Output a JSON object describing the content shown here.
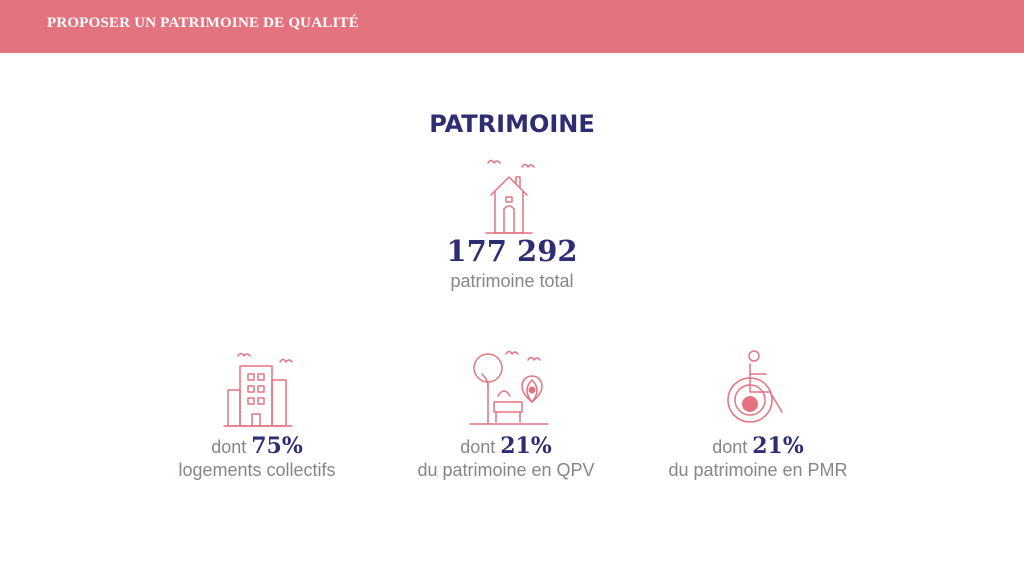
{
  "header": {
    "title": "PROPOSER UN PATRIMOINE DE QUALITÉ"
  },
  "main": {
    "title": "PATRIMOINE",
    "total": {
      "value": "177 292",
      "label": "patrimoine total",
      "icon": "house-icon"
    },
    "stats": [
      {
        "prefix": "dont ",
        "value": "75%",
        "label": "logements collectifs",
        "icon": "apartment-building-icon"
      },
      {
        "prefix": "dont ",
        "value": "21%",
        "label": "du patrimoine en QPV",
        "icon": "park-location-icon"
      },
      {
        "prefix": "dont ",
        "value": "21%",
        "label": "du patrimoine en PMR",
        "icon": "wheelchair-icon"
      }
    ]
  },
  "colors": {
    "accent": "#e47380",
    "navy": "#2e2d73",
    "text": "#8a8582"
  }
}
